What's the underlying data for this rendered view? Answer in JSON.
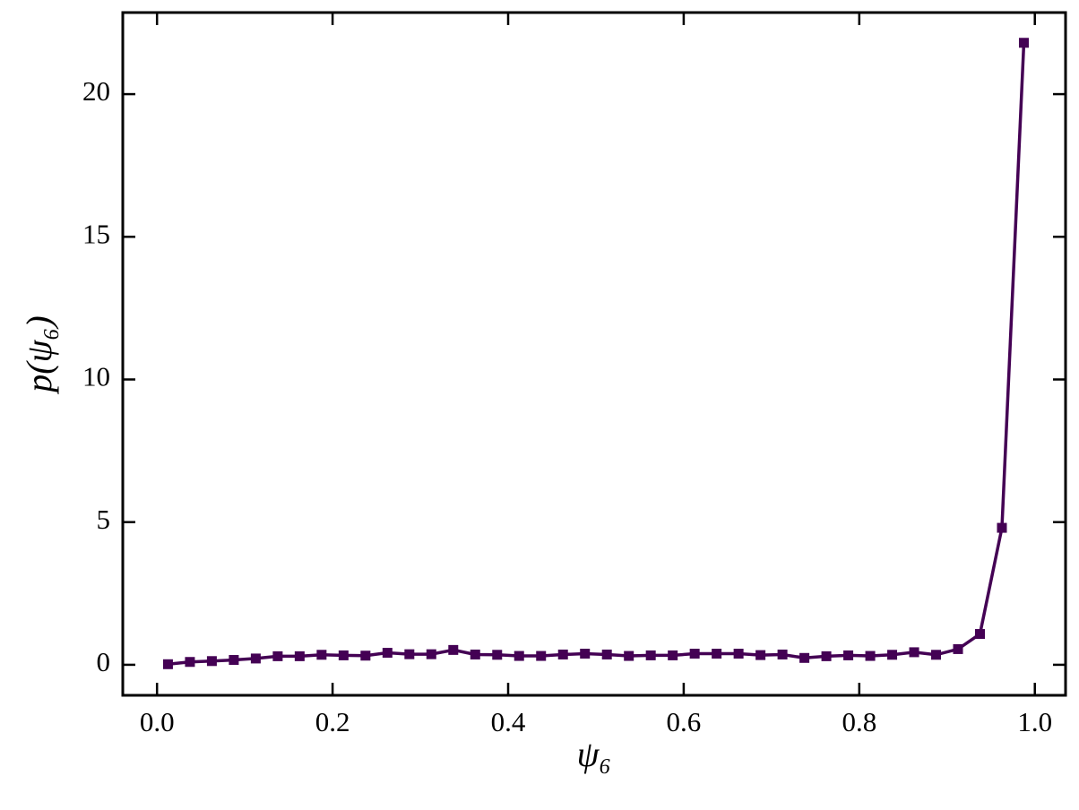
{
  "chart_data": {
    "type": "line",
    "xlabel": "ψ₆",
    "ylabel": "p(ψ₆)",
    "x": [
      0.0125,
      0.0375,
      0.0625,
      0.0875,
      0.1125,
      0.1375,
      0.1625,
      0.1875,
      0.2125,
      0.2375,
      0.2625,
      0.2875,
      0.3125,
      0.3375,
      0.3625,
      0.3875,
      0.4125,
      0.4375,
      0.4625,
      0.4875,
      0.5125,
      0.5375,
      0.5625,
      0.5875,
      0.6125,
      0.6375,
      0.6625,
      0.6875,
      0.7125,
      0.7375,
      0.7625,
      0.7875,
      0.8125,
      0.8375,
      0.8625,
      0.8875,
      0.9125,
      0.9375,
      0.9625,
      0.9875
    ],
    "series": [
      {
        "color": "#440154",
        "marker": "square",
        "values": [
          0.02,
          0.1,
          0.13,
          0.17,
          0.22,
          0.3,
          0.3,
          0.35,
          0.33,
          0.32,
          0.42,
          0.37,
          0.37,
          0.52,
          0.36,
          0.35,
          0.31,
          0.31,
          0.36,
          0.39,
          0.36,
          0.31,
          0.33,
          0.33,
          0.39,
          0.39,
          0.39,
          0.34,
          0.36,
          0.24,
          0.3,
          0.33,
          0.31,
          0.35,
          0.44,
          0.35,
          0.55,
          1.08,
          4.8,
          21.8
        ]
      }
    ],
    "xlim": [
      -0.039,
      1.035
    ],
    "ylim": [
      -1.07,
      22.86
    ],
    "xticks": [
      {
        "value": 0,
        "label": "0.0"
      },
      0.2,
      0.4,
      0.6,
      0.8,
      {
        "value": 1,
        "label": "1.0"
      }
    ],
    "yticks": [
      0,
      5,
      10,
      15,
      20
    ],
    "grid": false
  }
}
